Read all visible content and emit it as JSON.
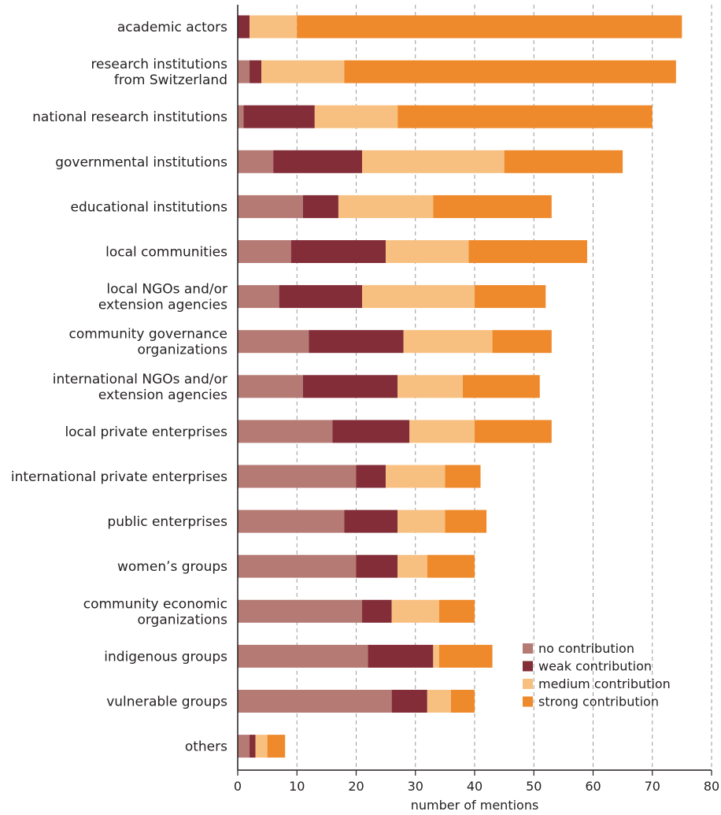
{
  "chart_data": {
    "type": "bar",
    "orientation": "horizontal",
    "stacked": true,
    "title": "",
    "xlabel": "number of mentions",
    "ylabel": "",
    "xlim": [
      0,
      80
    ],
    "xticks": [
      0,
      10,
      20,
      30,
      40,
      50,
      60,
      70,
      80
    ],
    "grid": "vertical dashed",
    "legend_position": "bottom-right",
    "categories": [
      "academic actors",
      "research institutions\nfrom Switzerland",
      "national research institutions",
      "governmental institutions",
      "educational institutions",
      "local communities",
      "local NGOs and/or\nextension agencies",
      "community governance\norganizations",
      "international NGOs and/or\nextension agencies",
      "local private enterprises",
      "international private enterprises",
      "public enterprises",
      "women’s groups",
      "community economic\norganizations",
      "indigenous groups",
      "vulnerable groups",
      "others"
    ],
    "series": [
      {
        "name": "no contribution",
        "color": "#b57a74",
        "values": [
          0,
          2,
          1,
          6,
          11,
          9,
          7,
          12,
          11,
          16,
          20,
          18,
          20,
          21,
          22,
          26,
          2
        ]
      },
      {
        "name": "weak contribution",
        "color": "#832d38",
        "values": [
          2,
          2,
          12,
          15,
          6,
          16,
          14,
          16,
          16,
          13,
          5,
          9,
          7,
          5,
          11,
          6,
          1
        ]
      },
      {
        "name": "medium contribution",
        "color": "#f8c080",
        "values": [
          8,
          14,
          14,
          24,
          16,
          14,
          19,
          15,
          11,
          11,
          10,
          8,
          5,
          8,
          1,
          4,
          2
        ]
      },
      {
        "name": "strong contribution",
        "color": "#ef8a2c",
        "values": [
          65,
          56,
          43,
          20,
          20,
          20,
          12,
          10,
          13,
          13,
          6,
          7,
          8,
          6,
          9,
          4,
          3
        ]
      }
    ]
  }
}
